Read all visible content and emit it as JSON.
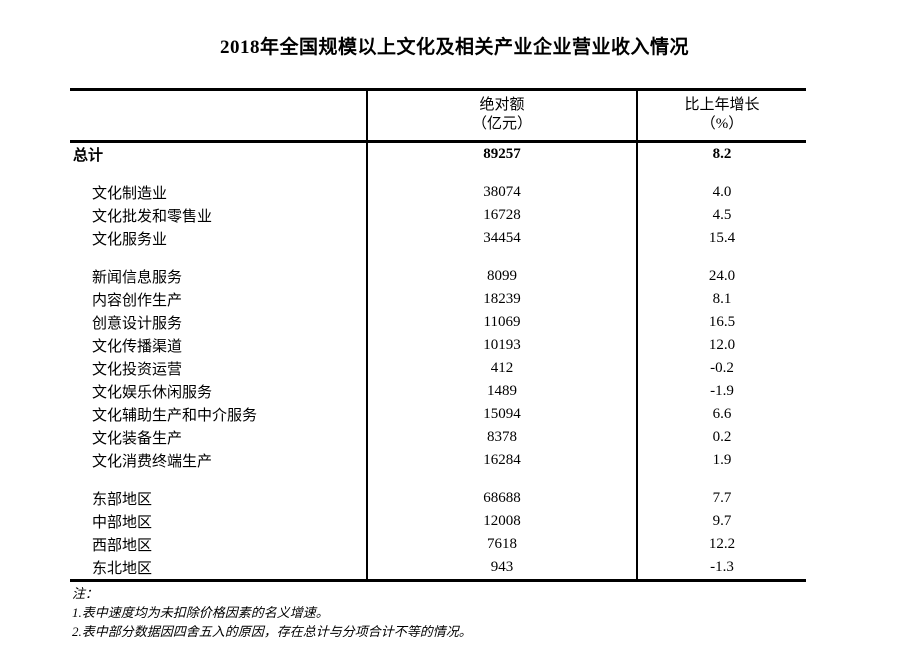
{
  "page": {
    "title": "2018年全国规模以上文化及相关产业企业营业收入情况"
  },
  "colors": {
    "background": "#ffffff",
    "text": "#000000",
    "border": "#000000"
  },
  "table": {
    "header": {
      "indicator": "",
      "absolute_line1": "绝对额",
      "absolute_line2": "（亿元）",
      "growth_line1": "比上年增长",
      "growth_line2": "（%）"
    },
    "rows": [
      {
        "label": "总计",
        "value": "89257",
        "growth": "8.2",
        "bold": true,
        "indent": false,
        "blank": false
      },
      {
        "label": "",
        "value": "",
        "growth": "",
        "bold": false,
        "indent": false,
        "blank": true
      },
      {
        "label": "文化制造业",
        "value": "38074",
        "growth": "4.0",
        "bold": false,
        "indent": true,
        "blank": false
      },
      {
        "label": "文化批发和零售业",
        "value": "16728",
        "growth": "4.5",
        "bold": false,
        "indent": true,
        "blank": false
      },
      {
        "label": "文化服务业",
        "value": "34454",
        "growth": "15.4",
        "bold": false,
        "indent": true,
        "blank": false
      },
      {
        "label": "",
        "value": "",
        "growth": "",
        "bold": false,
        "indent": false,
        "blank": true
      },
      {
        "label": "新闻信息服务",
        "value": "8099",
        "growth": "24.0",
        "bold": false,
        "indent": true,
        "blank": false
      },
      {
        "label": "内容创作生产",
        "value": "18239",
        "growth": "8.1",
        "bold": false,
        "indent": true,
        "blank": false
      },
      {
        "label": "创意设计服务",
        "value": "11069",
        "growth": "16.5",
        "bold": false,
        "indent": true,
        "blank": false
      },
      {
        "label": "文化传播渠道",
        "value": "10193",
        "growth": "12.0",
        "bold": false,
        "indent": true,
        "blank": false
      },
      {
        "label": "文化投资运营",
        "value": "412",
        "growth": "-0.2",
        "bold": false,
        "indent": true,
        "blank": false
      },
      {
        "label": "文化娱乐休闲服务",
        "value": "1489",
        "growth": "-1.9",
        "bold": false,
        "indent": true,
        "blank": false
      },
      {
        "label": "文化辅助生产和中介服务",
        "value": "15094",
        "growth": "6.6",
        "bold": false,
        "indent": true,
        "blank": false
      },
      {
        "label": "文化装备生产",
        "value": "8378",
        "growth": "0.2",
        "bold": false,
        "indent": true,
        "blank": false
      },
      {
        "label": "文化消费终端生产",
        "value": "16284",
        "growth": "1.9",
        "bold": false,
        "indent": true,
        "blank": false
      },
      {
        "label": "",
        "value": "",
        "growth": "",
        "bold": false,
        "indent": false,
        "blank": true
      },
      {
        "label": "东部地区",
        "value": "68688",
        "growth": "7.7",
        "bold": false,
        "indent": true,
        "blank": false
      },
      {
        "label": "中部地区",
        "value": "12008",
        "growth": "9.7",
        "bold": false,
        "indent": true,
        "blank": false
      },
      {
        "label": "西部地区",
        "value": "7618",
        "growth": "12.2",
        "bold": false,
        "indent": true,
        "blank": false
      },
      {
        "label": "东北地区",
        "value": "943",
        "growth": "-1.3",
        "bold": false,
        "indent": true,
        "blank": false
      }
    ]
  },
  "notes": {
    "heading": "注：",
    "items": [
      "1.表中速度均为未扣除价格因素的名义增速。",
      "2.表中部分数据因四舍五入的原因，存在总计与分项合计不等的情况。"
    ]
  }
}
